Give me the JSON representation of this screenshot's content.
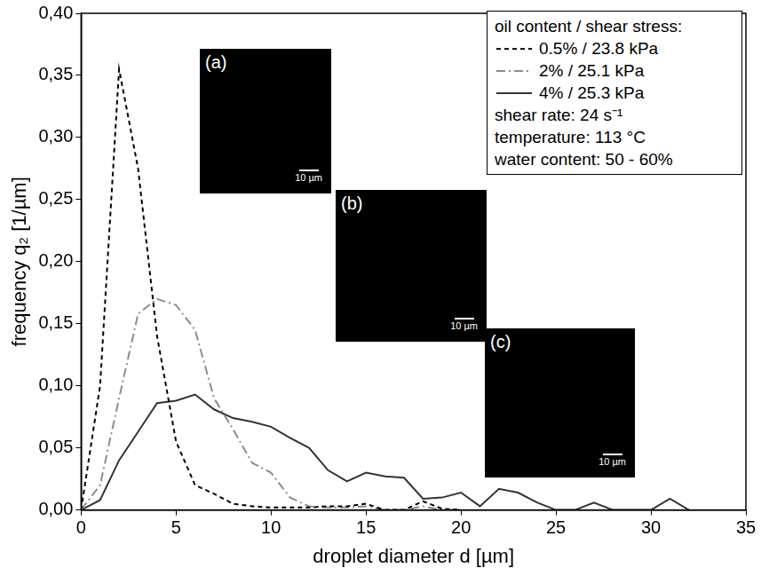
{
  "chart_data": {
    "type": "line",
    "x_label": "droplet diameter d [µm]",
    "y_label": "frequency q₂ [1/µm]",
    "xlim": [
      0,
      35
    ],
    "xticks": [
      0,
      5,
      10,
      15,
      20,
      25,
      30,
      35
    ],
    "ylim": [
      0,
      0.4
    ],
    "yticks": [
      {
        "value": 0,
        "label": "0,00"
      },
      {
        "value": 0.05,
        "label": "0,05"
      },
      {
        "value": 0.1,
        "label": "0,10"
      },
      {
        "value": 0.15,
        "label": "0,15"
      },
      {
        "value": 0.2,
        "label": "0,20"
      },
      {
        "value": 0.25,
        "label": "0,25"
      },
      {
        "value": 0.3,
        "label": "0,30"
      },
      {
        "value": 0.35,
        "label": "0,35"
      },
      {
        "value": 0.4,
        "label": "0,40"
      }
    ],
    "grid": false,
    "legend": "upper right",
    "legend_title": "oil content / shear stress:",
    "annotations": [
      "shear rate: 24 s⁻¹",
      "temperature: 113 °C",
      "water content: 50 - 60%"
    ],
    "insets": [
      {
        "label": "(a)",
        "scale_bar": "10 µm"
      },
      {
        "label": "(b)",
        "scale_bar": "10 µm"
      },
      {
        "label": "(c)",
        "scale_bar": "10 µm"
      }
    ],
    "series": [
      {
        "name": "0.5% / 23.8 kPa",
        "color": "#000000",
        "line_style": "dashed",
        "x": [
          0,
          1,
          2,
          3,
          4,
          5,
          6,
          7,
          8,
          9,
          10,
          11,
          12,
          13,
          14,
          15,
          16,
          17,
          18,
          19,
          20
        ],
        "values": [
          0,
          0.1,
          0.355,
          0.275,
          0.14,
          0.055,
          0.02,
          0.013,
          0.005,
          0.003,
          0.002,
          0.002,
          0.002,
          0.003,
          0.003,
          0.005,
          0,
          0,
          0.007,
          0.001,
          0
        ]
      },
      {
        "name": "2% / 25.1 kPa",
        "color": "#8c8c8c",
        "line_style": "dashdot",
        "x": [
          0,
          1,
          2,
          3,
          4,
          5,
          6,
          7,
          8,
          9,
          10,
          11,
          12,
          13,
          14,
          15,
          16,
          17,
          18,
          19,
          20
        ],
        "values": [
          0,
          0.02,
          0.09,
          0.158,
          0.17,
          0.165,
          0.145,
          0.09,
          0.065,
          0.038,
          0.03,
          0.01,
          0.003,
          0.002,
          0.002,
          0.003,
          0,
          0,
          0.003,
          0,
          0
        ]
      },
      {
        "name": "4% / 25.3 kPa",
        "color": "#333333",
        "line_style": "solid",
        "x": [
          0,
          1,
          2,
          3,
          4,
          5,
          6,
          7,
          8,
          9,
          10,
          11,
          12,
          13,
          14,
          15,
          16,
          17,
          18,
          19,
          20,
          21,
          22,
          23,
          24,
          25,
          26,
          27,
          28,
          29,
          30,
          31,
          32
        ],
        "values": [
          0,
          0.008,
          0.04,
          0.063,
          0.086,
          0.088,
          0.093,
          0.081,
          0.074,
          0.071,
          0.067,
          0.058,
          0.05,
          0.032,
          0.023,
          0.03,
          0.027,
          0.026,
          0.009,
          0.01,
          0.014,
          0.003,
          0.017,
          0.014,
          0.006,
          0,
          0,
          0.006,
          0,
          0,
          0,
          0.009,
          0
        ]
      }
    ]
  }
}
